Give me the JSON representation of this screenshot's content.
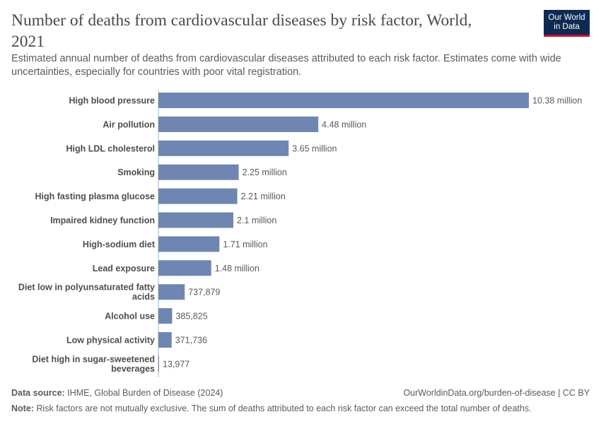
{
  "header": {
    "title": "Number of deaths from cardiovascular diseases by risk factor, World, 2021",
    "subtitle": "Estimated annual number of deaths from cardiovascular diseases attributed to each risk factor. Estimates come with wide uncertainties, especially for countries with poor vital registration.",
    "logo_line1": "Our World",
    "logo_line2": "in Data"
  },
  "footer": {
    "source_label": "Data source:",
    "source_text": "IHME, Global Burden of Disease (2024)",
    "url_text": "OurWorldinData.org/burden-of-disease | CC BY",
    "note_label": "Note:",
    "note_text": "Risk factors are not mutually exclusive. The sum of deaths attributed to each risk factor can exceed the total number of deaths."
  },
  "colors": {
    "bar": "#6e86b1",
    "axis": "#b0b0b0",
    "logo_bg": "#0d2a53",
    "logo_accent": "#c8102e"
  },
  "chart_data": {
    "type": "bar",
    "orientation": "horizontal",
    "title": "Number of deaths from cardiovascular diseases by risk factor, World, 2021",
    "categories": [
      [
        "High blood pressure"
      ],
      [
        "Air pollution"
      ],
      [
        "High LDL cholesterol"
      ],
      [
        "Smoking"
      ],
      [
        "High fasting plasma glucose"
      ],
      [
        "Impaired kidney function"
      ],
      [
        "High-sodium diet"
      ],
      [
        "Lead exposure"
      ],
      [
        "Diet low in polyunsaturated fatty",
        "acids"
      ],
      [
        "Alcohol use"
      ],
      [
        "Low physical activity"
      ],
      [
        "Diet high in sugar-sweetened",
        "beverages"
      ]
    ],
    "values": [
      10380000,
      4480000,
      3650000,
      2250000,
      2210000,
      2100000,
      1710000,
      1480000,
      737879,
      385825,
      371736,
      13977
    ],
    "value_labels": [
      "10.38 million",
      "4.48 million",
      "3.65 million",
      "2.25 million",
      "2.21 million",
      "2.1 million",
      "1.71 million",
      "1.48 million",
      "737,879",
      "385,825",
      "371,736",
      "13,977"
    ],
    "xlim": [
      0,
      10380000
    ]
  }
}
